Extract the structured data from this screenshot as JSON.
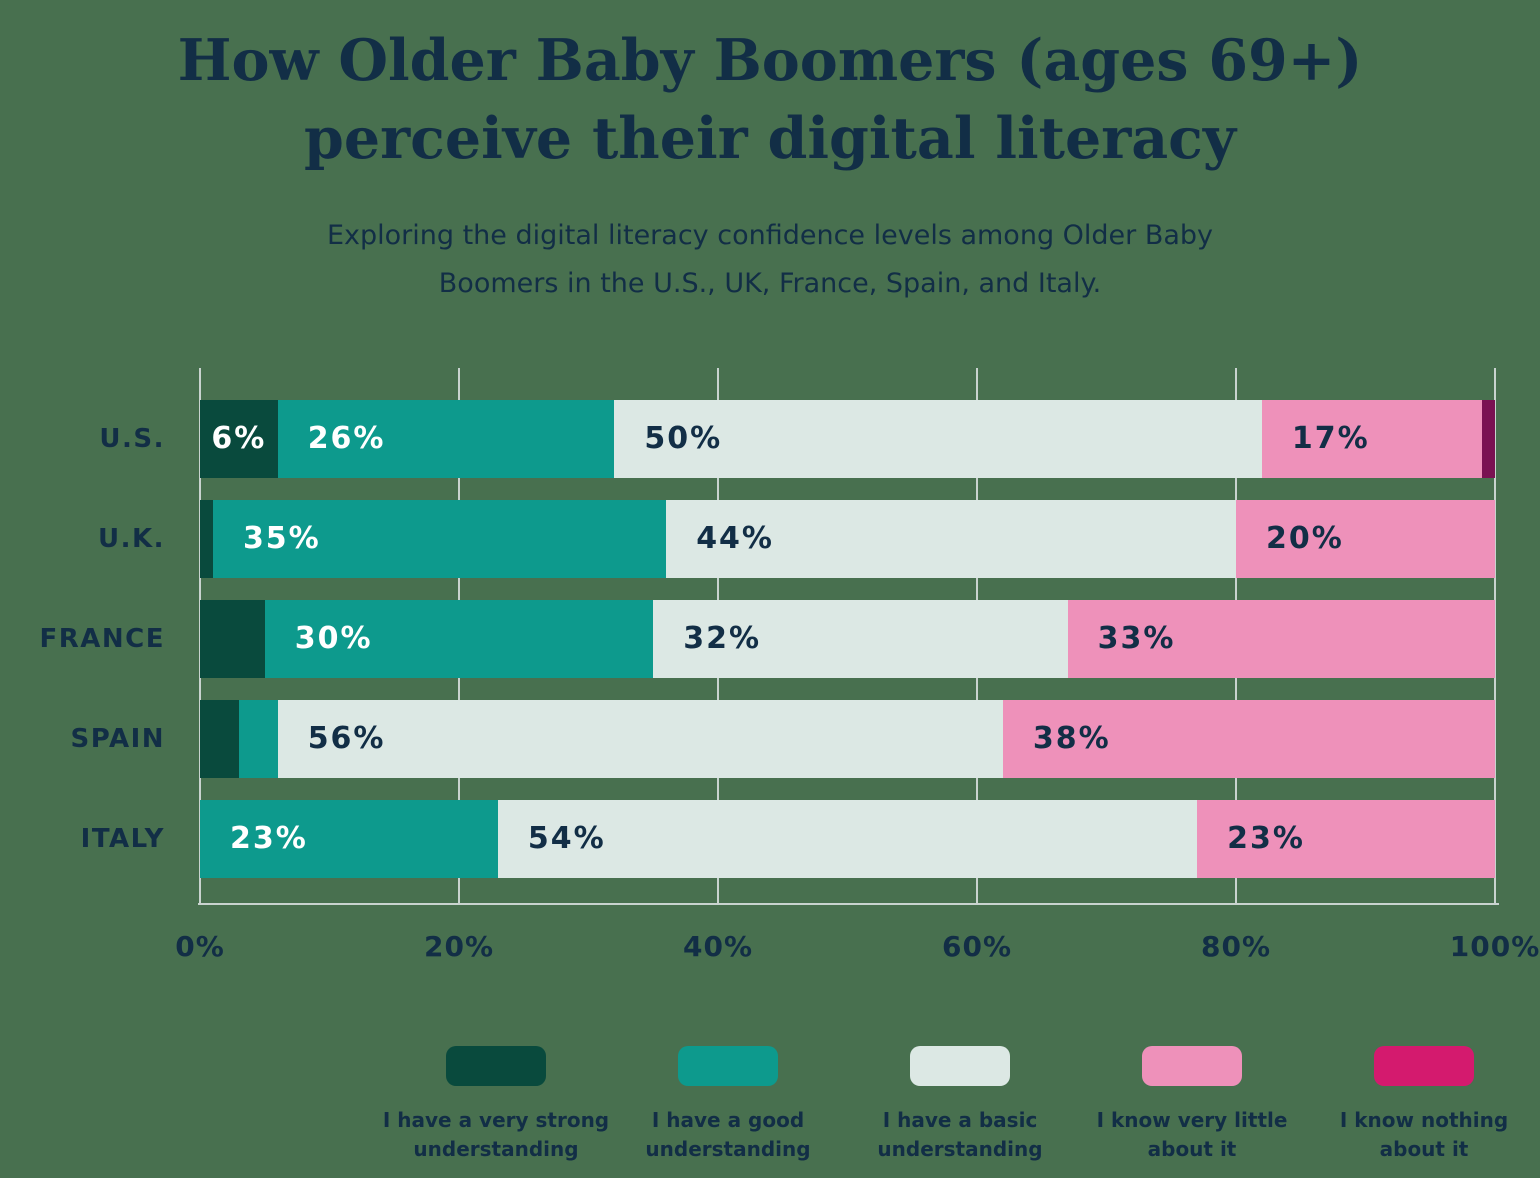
{
  "colors": {
    "background": "#48704F",
    "text": "#122E46",
    "gridline": "#C9D3CF",
    "label_on_dark": "#FFFFFF"
  },
  "chart_data": {
    "type": "bar",
    "orientation": "horizontal-stacked",
    "title": "How Older Baby Boomers (ages 69+)\nperceive their digital literacy",
    "subtitle": "Exploring the digital literacy confidence levels among Older Baby\nBoomers in the U.S., UK, France, Spain, and Italy.",
    "categories": [
      "U.S.",
      "U.K.",
      "FRANCE",
      "SPAIN",
      "ITALY"
    ],
    "series": [
      {
        "name": "I have a very strong understanding",
        "legend_label": "I have a very strong\nunderstanding",
        "color": "#094A3D",
        "label_color": "#FFFFFF",
        "values": [
          6,
          1,
          5,
          3,
          0
        ]
      },
      {
        "name": "I have a good understanding",
        "legend_label": "I have a good\nunderstanding",
        "color": "#0D9A8D",
        "label_color": "#FFFFFF",
        "values": [
          26,
          35,
          30,
          3,
          23
        ]
      },
      {
        "name": "I have a basic understanding",
        "legend_label": "I have a basic\nunderstanding",
        "color": "#DCE8E4",
        "label_color": "#122E46",
        "values": [
          50,
          44,
          32,
          56,
          54
        ]
      },
      {
        "name": "I know very little about it",
        "legend_label": "I know very little\nabout it",
        "color": "#EE91BA",
        "label_color": "#122E46",
        "values": [
          17,
          20,
          33,
          38,
          23
        ]
      },
      {
        "name": "I know nothing about it",
        "legend_label": "I know nothing\nabout it",
        "color": "#D41A6E",
        "bar_color": "#7A1152",
        "label_color": "#122E46",
        "values": [
          1,
          0,
          0,
          0,
          0
        ]
      }
    ],
    "xticks": [
      "0%",
      "20%",
      "40%",
      "60%",
      "80%",
      "100%"
    ],
    "xlim": [
      0,
      100
    ],
    "grid": true,
    "legend_position": "bottom",
    "value_label_suffix": "%",
    "value_label_min": 6
  }
}
